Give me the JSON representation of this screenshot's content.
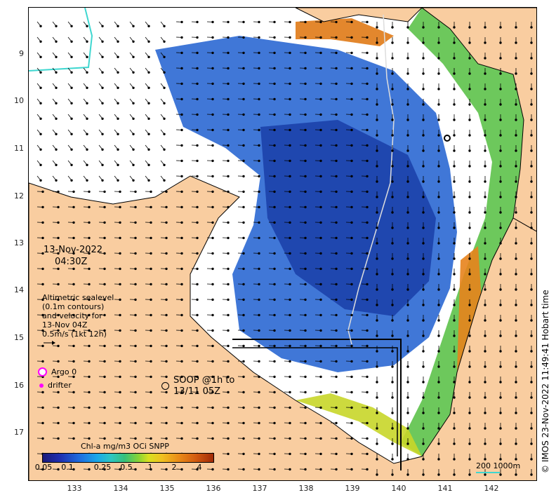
{
  "map": {
    "timestamp_line1": "13-Nov-2022",
    "timestamp_line2": "04:30Z",
    "altimetry_note": [
      "Altimetric sealevel",
      "(0.1m contours)",
      "and velocity for",
      "13-Nov 04Z",
      "0.5m/s (1kt 12h)"
    ],
    "legend": {
      "argo_label": "Argo 0",
      "drifter_label": "drifter",
      "soop_line1": "SOOP @1h to",
      "soop_line2": "13/11 05Z",
      "argo_color": "#ff00ff",
      "drifter_color": "#ff00ff"
    },
    "colorbar": {
      "title": "Chl-a mg/m3 OCi SNPP",
      "ticks": [
        "0.05",
        "0.1",
        "0.25",
        "0.5",
        "1",
        "2",
        "4"
      ]
    },
    "scale_label": "200  1000m",
    "copyright": "© IMOS 23-Nov-2022 11:49:41 Hobart time",
    "lat_ticks": [
      "9",
      "10",
      "11",
      "12",
      "13",
      "14",
      "15",
      "16",
      "17"
    ],
    "lon_ticks": [
      "133",
      "134",
      "135",
      "136",
      "137",
      "138",
      "139",
      "140",
      "141",
      "142"
    ],
    "land_color": "#f9cda0",
    "scale_color": "#3fd7d0"
  }
}
